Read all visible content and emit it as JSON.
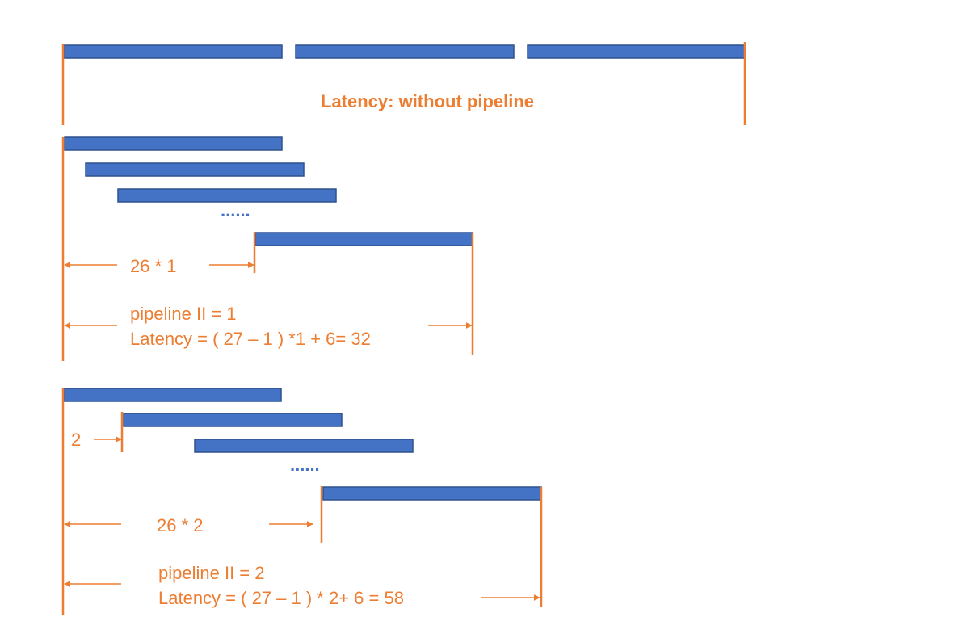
{
  "diagram": {
    "colors": {
      "bar": "#4472C4",
      "accent": "#ED7D31",
      "background": "#ffffff"
    },
    "section1": {
      "label": "Latency: without pipeline"
    },
    "section2": {
      "ellipsis": "......",
      "span_label": "26 * 1",
      "ii_label": "pipeline II = 1",
      "latency_label": "Latency = ( 27 – 1 ) *1 + 6= 32"
    },
    "section3": {
      "offset_label": "2",
      "ellipsis": "......",
      "span_label": "26 * 2",
      "ii_label": "pipeline II = 2",
      "latency_label": "Latency = ( 27 – 1 ) * 2+ 6 = 58"
    }
  }
}
